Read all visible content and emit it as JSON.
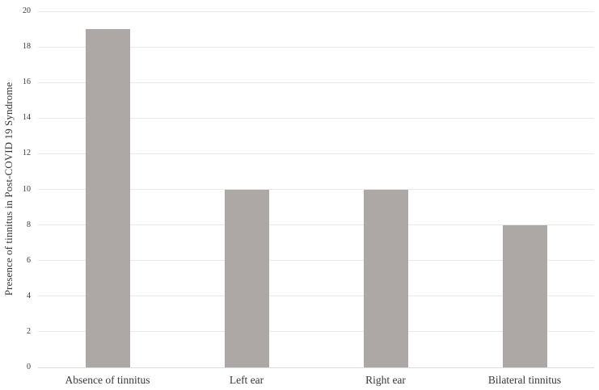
{
  "chart_data": {
    "type": "bar",
    "title": "",
    "categories": [
      "Absence of tinnitus",
      "Left ear",
      "Right ear",
      "Bilateral tinnitus"
    ],
    "values": [
      19,
      10,
      10,
      8
    ],
    "xlabel": "",
    "ylabel": "Presence of tinnitus in Post-COVID 19 Syndrome",
    "ylim": [
      0,
      20
    ],
    "yticks": [
      0,
      2,
      4,
      6,
      8,
      10,
      12,
      14,
      16,
      18,
      20
    ],
    "grid": "horizontal",
    "legend": "none",
    "colors": {
      "bar": "#ada8a5",
      "gridline": "#e9e9e9",
      "baseline": "#dcdcdc",
      "text": "#3c3837"
    }
  }
}
